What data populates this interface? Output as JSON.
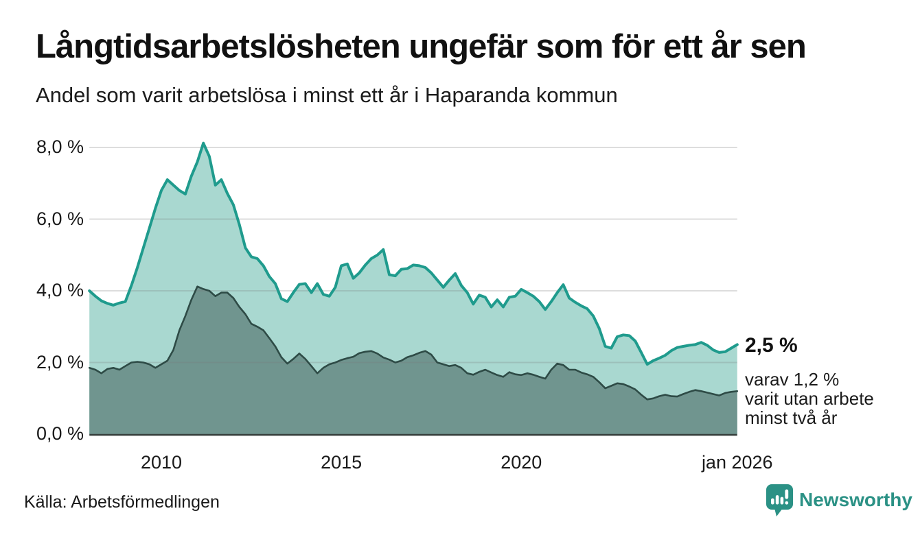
{
  "header": {
    "title": "Långtidsarbetslösheten ungefär som för ett år sen",
    "subtitle": "Andel som varit arbetslösa i minst ett år i Haparanda kommun"
  },
  "annotations": {
    "latest_total": "2,5 %",
    "breakdown_line1": "varav 1,2 %",
    "breakdown_line2": "varit utan arbete",
    "breakdown_line3": "minst två år"
  },
  "footer": {
    "source": "Källa: Arbetsförmedlingen",
    "brand": "Newsworthy"
  },
  "colors": {
    "line_1yr": "#1f9b8d",
    "fill_1yr": "#a9d8d0",
    "line_2yr": "#2e4b46",
    "fill_2yr": "#70958f",
    "gridline": "rgba(120,120,120,0.25)",
    "baseline": "#343d3a",
    "brand_teal": "#2b9185",
    "text": "#111111"
  },
  "chart_data": {
    "type": "area",
    "title": "Långtidsarbetslösheten ungefär som för ett år sen",
    "subtitle": "Andel som varit arbetslösa i minst ett år i Haparanda kommun",
    "unit": "%",
    "x_start_year": 2008,
    "x_end_year": 2026,
    "points_per_year": 6,
    "ylim": [
      0,
      8.4
    ],
    "grid": true,
    "y_ticks": [
      {
        "label": "8,0 %",
        "value": 8
      },
      {
        "label": "6,0 %",
        "value": 6
      },
      {
        "label": "4,0 %",
        "value": 4
      },
      {
        "label": "2,0 %",
        "value": 2
      },
      {
        "label": "0,0 %",
        "value": 0
      }
    ],
    "x_ticks": [
      {
        "label": "2010",
        "year": 2010
      },
      {
        "label": "2015",
        "year": 2015
      },
      {
        "label": "2020",
        "year": 2020
      },
      {
        "label": "jan 2026",
        "year": 2026
      }
    ],
    "latest": {
      "total_pct": 2.5,
      "two_year_pct": 1.2
    },
    "series": [
      {
        "name": "Andel arbetslösa minst ett år",
        "color": "#1f9b8d",
        "fill": "#a9d8d0",
        "line_width": 4,
        "values": [
          4.0,
          3.85,
          3.72,
          3.65,
          3.6,
          3.66,
          3.7,
          4.15,
          4.65,
          5.2,
          5.75,
          6.3,
          6.8,
          7.1,
          6.95,
          6.8,
          6.7,
          7.2,
          7.6,
          8.12,
          7.75,
          6.95,
          7.1,
          6.72,
          6.4,
          5.85,
          5.2,
          4.95,
          4.9,
          4.7,
          4.4,
          4.2,
          3.78,
          3.7,
          3.95,
          4.18,
          4.2,
          3.95,
          4.2,
          3.9,
          3.85,
          4.1,
          4.7,
          4.75,
          4.35,
          4.5,
          4.72,
          4.9,
          5.0,
          5.15,
          4.45,
          4.42,
          4.6,
          4.62,
          4.72,
          4.7,
          4.65,
          4.5,
          4.3,
          4.1,
          4.3,
          4.48,
          4.15,
          3.95,
          3.63,
          3.88,
          3.82,
          3.55,
          3.75,
          3.55,
          3.82,
          3.85,
          4.04,
          3.95,
          3.85,
          3.7,
          3.48,
          3.7,
          3.95,
          4.17,
          3.8,
          3.68,
          3.58,
          3.5,
          3.3,
          2.95,
          2.45,
          2.4,
          2.72,
          2.77,
          2.75,
          2.6,
          2.28,
          1.95,
          2.05,
          2.12,
          2.2,
          2.33,
          2.42,
          2.45,
          2.48,
          2.5,
          2.56,
          2.48,
          2.35,
          2.28,
          2.3,
          2.4,
          2.5
        ]
      },
      {
        "name": "Andel utan arbete minst två år",
        "color": "#2e4b46",
        "fill": "#70958f",
        "line_width": 2.6,
        "values": [
          1.85,
          1.8,
          1.7,
          1.82,
          1.85,
          1.8,
          1.9,
          2.0,
          2.02,
          2.0,
          1.95,
          1.85,
          1.95,
          2.05,
          2.35,
          2.9,
          3.3,
          3.75,
          4.12,
          4.05,
          4.0,
          3.85,
          3.95,
          3.95,
          3.8,
          3.55,
          3.35,
          3.08,
          3.0,
          2.9,
          2.68,
          2.45,
          2.15,
          1.97,
          2.1,
          2.25,
          2.1,
          1.9,
          1.7,
          1.85,
          1.95,
          2.0,
          2.07,
          2.12,
          2.16,
          2.26,
          2.3,
          2.32,
          2.25,
          2.14,
          2.08,
          2.0,
          2.05,
          2.15,
          2.2,
          2.27,
          2.32,
          2.22,
          2.0,
          1.95,
          1.9,
          1.93,
          1.85,
          1.7,
          1.66,
          1.74,
          1.8,
          1.72,
          1.65,
          1.6,
          1.73,
          1.67,
          1.65,
          1.7,
          1.66,
          1.6,
          1.55,
          1.8,
          1.97,
          1.93,
          1.8,
          1.8,
          1.72,
          1.67,
          1.6,
          1.45,
          1.28,
          1.35,
          1.42,
          1.4,
          1.33,
          1.25,
          1.1,
          0.97,
          1.0,
          1.06,
          1.1,
          1.06,
          1.05,
          1.12,
          1.18,
          1.23,
          1.2,
          1.16,
          1.12,
          1.08,
          1.15,
          1.18,
          1.2
        ]
      }
    ]
  }
}
